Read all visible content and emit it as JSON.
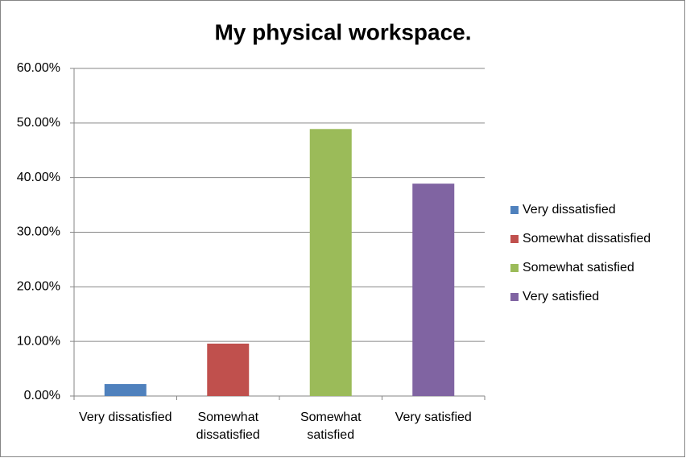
{
  "chart_data": {
    "type": "bar",
    "title": "My physical workspace.",
    "categories": [
      "Very dissatisfied",
      "Somewhat dissatisfied",
      "Somewhat satisfied",
      "Very satisfied"
    ],
    "values": [
      2.2,
      9.6,
      48.9,
      38.9
    ],
    "colors": [
      "#4f81bd",
      "#c0504d",
      "#9bbb59",
      "#8064a2"
    ],
    "ylim": [
      0,
      60
    ],
    "yticks": [
      {
        "value": 0,
        "label": "0.00%"
      },
      {
        "value": 10,
        "label": "10.00%"
      },
      {
        "value": 20,
        "label": "20.00%"
      },
      {
        "value": 30,
        "label": "30.00%"
      },
      {
        "value": 40,
        "label": "40.00%"
      },
      {
        "value": 50,
        "label": "50.00%"
      },
      {
        "value": 60,
        "label": "60.00%"
      }
    ],
    "grid": true,
    "legend": "right"
  }
}
